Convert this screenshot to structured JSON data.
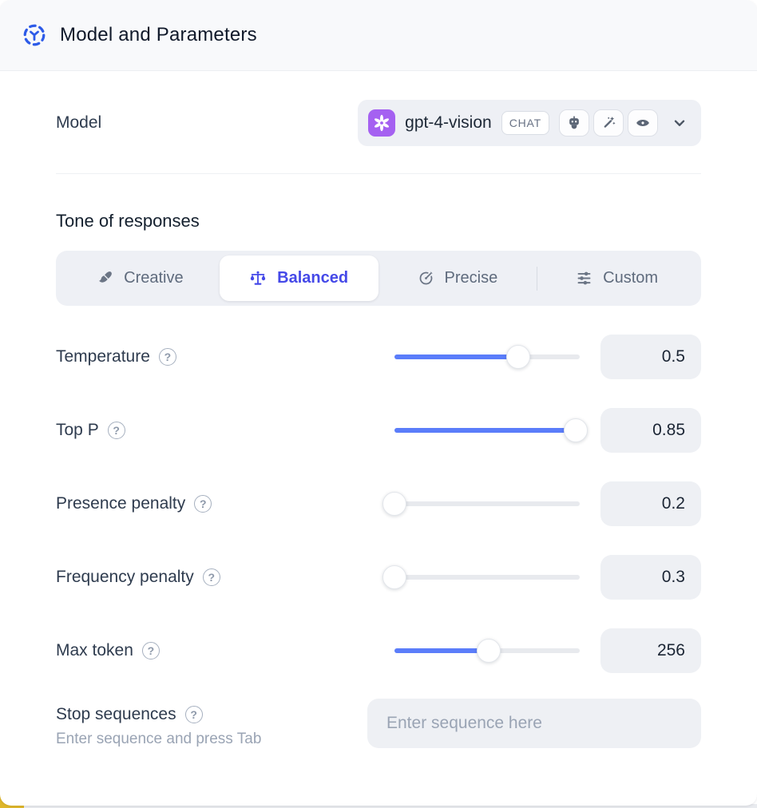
{
  "header": {
    "title": "Model and Parameters",
    "icon": "model-hub-icon"
  },
  "model": {
    "label": "Model",
    "name": "gpt-4-vision",
    "type_badge": "CHAT",
    "provider_icon": "openai-logo-icon",
    "capability_icons": [
      "robot-icon",
      "magic-wand-icon",
      "vision-eye-icon"
    ],
    "dropdown_icon": "chevron-down-icon"
  },
  "tone": {
    "heading": "Tone of responses",
    "tabs": [
      {
        "label": "Creative",
        "icon": "paintbrush-icon",
        "selected": false
      },
      {
        "label": "Balanced",
        "icon": "balance-scale-icon",
        "selected": true
      },
      {
        "label": "Precise",
        "icon": "target-icon",
        "selected": false
      },
      {
        "label": "Custom",
        "icon": "sliders-icon",
        "selected": false
      }
    ]
  },
  "parameters": [
    {
      "label": "Temperature",
      "value": "0.5",
      "slider_percent": 67
    },
    {
      "label": "Top P",
      "value": "0.85",
      "slider_percent": 98
    },
    {
      "label": "Presence penalty",
      "value": "0.2",
      "slider_percent": 0
    },
    {
      "label": "Frequency penalty",
      "value": "0.3",
      "slider_percent": 0
    },
    {
      "label": "Max token",
      "value": "256",
      "slider_percent": 51
    }
  ],
  "stop_sequences": {
    "label": "Stop sequences",
    "hint": "Enter sequence and press Tab",
    "placeholder": "Enter sequence here",
    "value": ""
  },
  "glyphs": {
    "help": "?"
  },
  "colors": {
    "accent_blue": "#4549e8",
    "slider_blue": "#5b7dfa",
    "header_icon_blue": "#2d5be8",
    "openai_purple": "#a561f1",
    "underlay_yellow": "#dfb72b"
  }
}
